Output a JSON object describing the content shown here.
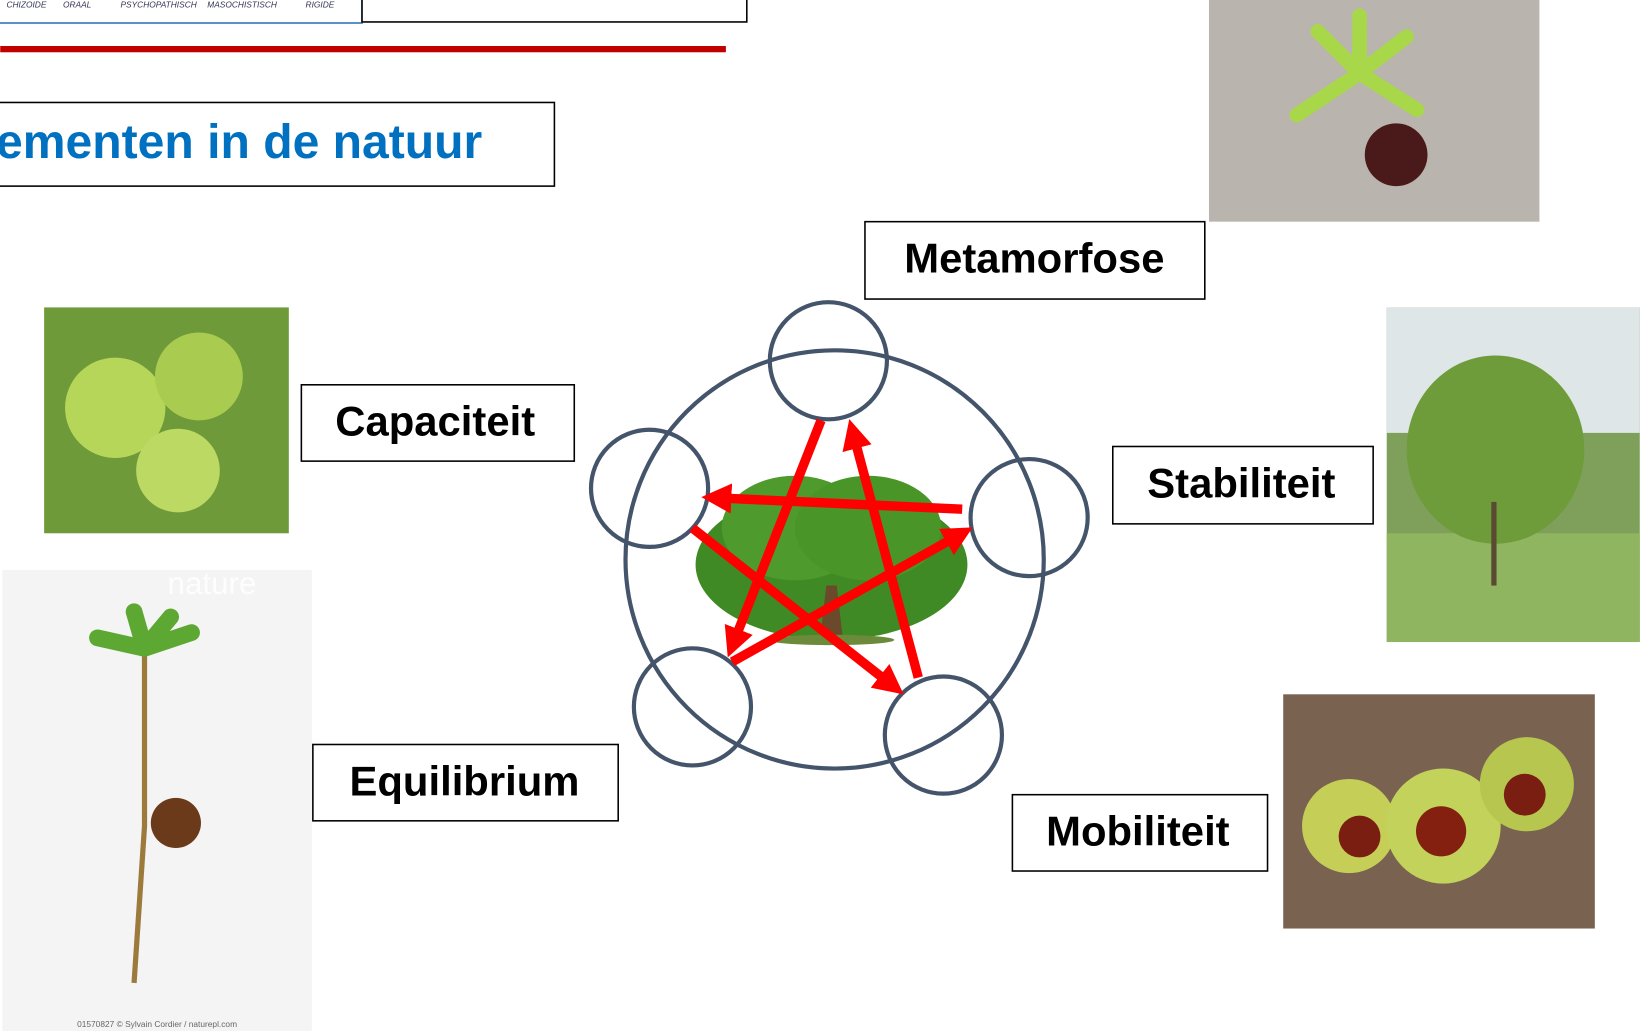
{
  "header": {
    "tabs": [
      "CHIZOIDE",
      "ORAAL",
      "PSYCHOPATHISCH",
      "MASOCHISTISCH",
      "RIGIDE"
    ]
  },
  "title": "ementen in de natuur",
  "labels": {
    "top": "Metamorfose",
    "left": "Capaciteit",
    "right": "Stabiliteit",
    "bottom_left": "Equilibrium",
    "bottom_right": "Mobiliteit"
  },
  "photo_caption": "01570827 © Sylvain Cordier / naturepl.com",
  "watermark": "nature"
}
